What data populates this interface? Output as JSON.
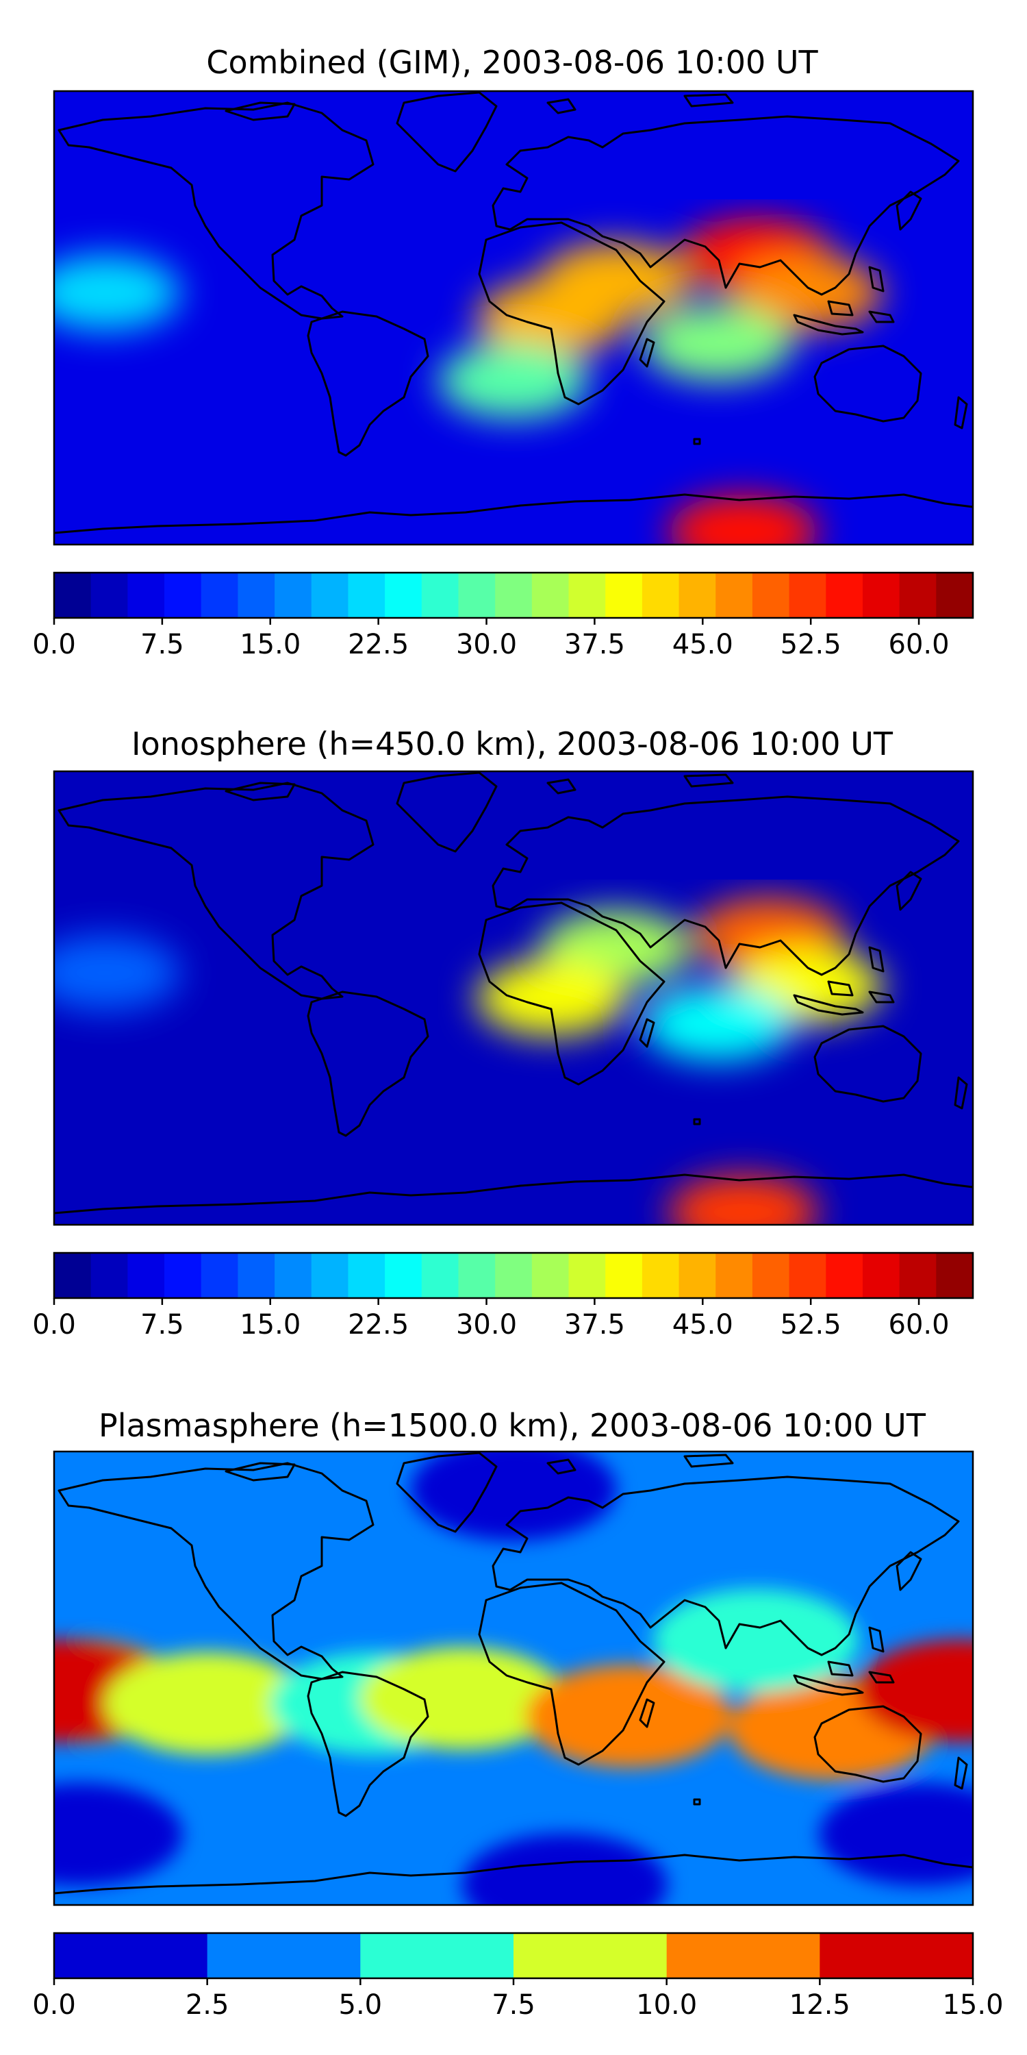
{
  "chart_data": [
    {
      "type": "heatmap",
      "title": "Combined (GIM), 2003-08-06 10:00 UT",
      "colormap": "jet",
      "colorbar": {
        "range": [
          0,
          63.75
        ],
        "levels": 25,
        "ticks": [
          "0.0",
          "7.5",
          "15.0",
          "22.5",
          "30.0",
          "37.5",
          "45.0",
          "52.5",
          "60.0"
        ],
        "tick_values": [
          0,
          7.5,
          15,
          22.5,
          30,
          37.5,
          45,
          52.5,
          60
        ]
      },
      "background_value": 7,
      "features": [
        {
          "region": "North Africa / Middle East crest",
          "lon": 40,
          "lat": 15,
          "value": 45
        },
        {
          "region": "Central Africa",
          "lon": 15,
          "lat": 0,
          "value": 45
        },
        {
          "region": "South / East Asia crest",
          "lon": 95,
          "lat": 25,
          "value": 56
        },
        {
          "region": "Southeast Asia",
          "lon": 115,
          "lat": 10,
          "value": 48
        },
        {
          "region": "Indian Ocean",
          "lon": 80,
          "lat": -10,
          "value": 33
        },
        {
          "region": "South Atlantic",
          "lon": 0,
          "lat": -25,
          "value": 30
        },
        {
          "region": "Antarctic coast",
          "lon": 90,
          "lat": -85,
          "value": 56
        },
        {
          "region": "Central Pacific",
          "lon": -160,
          "lat": 10,
          "value": 22
        }
      ]
    },
    {
      "type": "heatmap",
      "title": "Ionosphere  (h=450.0 km), 2003-08-06 10:00 UT",
      "colormap": "jet",
      "colorbar": {
        "range": [
          0,
          63.75
        ],
        "levels": 25,
        "ticks": [
          "0.0",
          "7.5",
          "15.0",
          "22.5",
          "30.0",
          "37.5",
          "45.0",
          "52.5",
          "60.0"
        ],
        "tick_values": [
          0,
          7.5,
          15,
          22.5,
          30,
          37.5,
          45,
          52.5,
          60
        ]
      },
      "background_value": 5,
      "features": [
        {
          "region": "Middle East",
          "lon": 40,
          "lat": 20,
          "value": 35
        },
        {
          "region": "Central Africa",
          "lon": 15,
          "lat": 0,
          "value": 40
        },
        {
          "region": "South / East Asia crest",
          "lon": 100,
          "lat": 25,
          "value": 50
        },
        {
          "region": "Southeast Asia",
          "lon": 115,
          "lat": 5,
          "value": 40
        },
        {
          "region": "Indian Ocean",
          "lon": 80,
          "lat": -10,
          "value": 25
        },
        {
          "region": "Antarctic coast",
          "lon": 90,
          "lat": -85,
          "value": 52
        },
        {
          "region": "Central Pacific",
          "lon": -160,
          "lat": 10,
          "value": 15
        }
      ]
    },
    {
      "type": "heatmap",
      "title": "Plasmasphere (h=1500.0 km), 2003-08-06 10:00 UT",
      "colormap": "jet",
      "colorbar": {
        "range": [
          0,
          15
        ],
        "levels": 6,
        "ticks": [
          "0.0",
          "2.5",
          "5.0",
          "7.5",
          "10.0",
          "12.5",
          "15.0"
        ],
        "tick_values": [
          0,
          2.5,
          5,
          7.5,
          10,
          12.5,
          15
        ]
      },
      "background_value": 4,
      "features": [
        {
          "region": "Northern high latitudes",
          "lon": 0,
          "lat": 75,
          "value": 1.5
        },
        {
          "region": "Western Pacific",
          "lon": -170,
          "lat": -5,
          "value": 11
        },
        {
          "region": "Date line",
          "lon": -178,
          "lat": -5,
          "value": 13
        },
        {
          "region": "Tropical Pacific",
          "lon": -120,
          "lat": -10,
          "value": 8.5
        },
        {
          "region": "South America",
          "lon": -55,
          "lat": -10,
          "value": 6.5
        },
        {
          "region": "Tropical Atlantic",
          "lon": -20,
          "lat": -8,
          "value": 8.5
        },
        {
          "region": "Africa / Indian Ocean",
          "lon": 45,
          "lat": -15,
          "value": 11
        },
        {
          "region": "Australia",
          "lon": 125,
          "lat": -20,
          "value": 11
        },
        {
          "region": "Western Pacific (east)",
          "lon": 175,
          "lat": -5,
          "value": 13
        },
        {
          "region": "Asia",
          "lon": 95,
          "lat": 15,
          "value": 6.5
        },
        {
          "region": "Southern Pacific",
          "lon": -170,
          "lat": -62,
          "value": 1.5
        },
        {
          "region": "Southern Indian Ocean",
          "lon": 160,
          "lat": -62,
          "value": 1.5
        },
        {
          "region": "Antarctic",
          "lon": 20,
          "lat": -82,
          "value": 1.5
        }
      ]
    }
  ]
}
